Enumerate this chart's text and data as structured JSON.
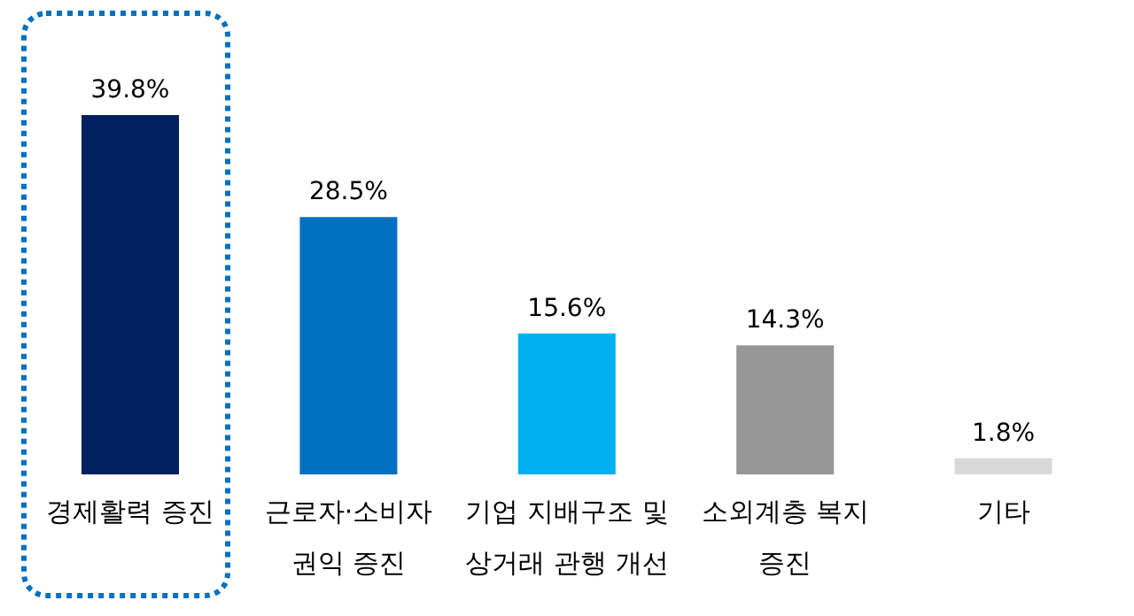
{
  "chart_data": {
    "type": "bar",
    "categories": [
      "경제활력 증진",
      "근로자·소비자\n권익 증진",
      "기업 지배구조 및\n상거래 관행 개선",
      "소외계층 복지\n증진",
      "기타"
    ],
    "values": [
      39.8,
      28.5,
      15.6,
      14.3,
      1.8
    ],
    "colors": [
      "#002060",
      "#0070c0",
      "#00b0f0",
      "#969696",
      "#d9d9d9"
    ],
    "value_labels": [
      "39.8%",
      "28.5%",
      "15.6%",
      "14.3%",
      "1.8%"
    ]
  }
}
